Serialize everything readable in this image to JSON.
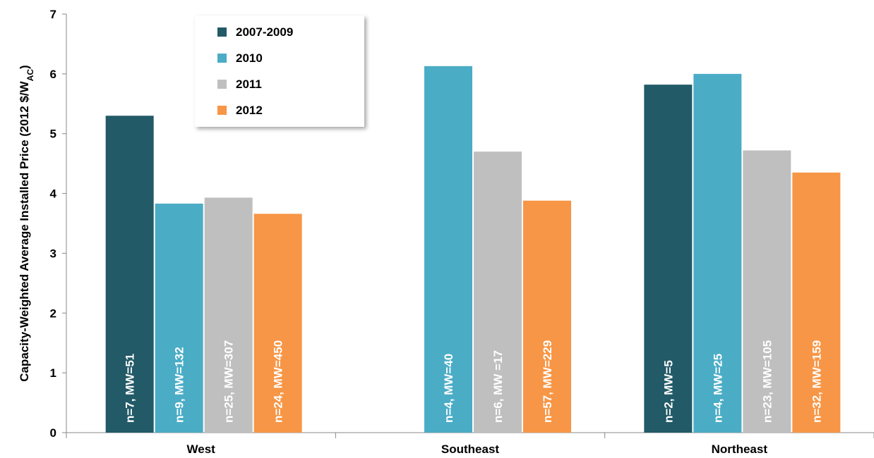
{
  "chart_data": {
    "type": "bar",
    "ylabel_main": "Capacity-Weighted Average Installed Price (2012 $/W",
    "ylabel_sub": "AC",
    "ylabel_end": ")",
    "ylim": [
      0,
      7
    ],
    "yticks": [
      "0",
      "1",
      "2",
      "3",
      "4",
      "5",
      "6",
      "7"
    ],
    "grid": false,
    "legend_position": "top-left",
    "categories": [
      "West",
      "Southeast",
      "Northeast"
    ],
    "series": [
      {
        "name": "2007-2009",
        "color": "#225a67",
        "values": [
          5.3,
          null,
          5.82
        ],
        "labels": [
          "n=7, MW=51",
          "",
          "n=2, MW=5"
        ]
      },
      {
        "name": "2010",
        "color": "#4bacc6",
        "values": [
          3.83,
          6.13,
          6.0
        ],
        "labels": [
          "n=9, MW=132",
          "n=4, MW=40",
          "n=4, MW=25"
        ]
      },
      {
        "name": "2011",
        "color": "#bfbfbf",
        "values": [
          3.93,
          4.7,
          4.72
        ],
        "labels": [
          "n=25, MW=307",
          "n=6, MW =17",
          "n=23, MW=105"
        ]
      },
      {
        "name": "2012",
        "color": "#f79646",
        "values": [
          3.66,
          3.88,
          4.35
        ],
        "labels": [
          "n=24, MW=450",
          "n=57, MW=229",
          "n=32, MW=159"
        ]
      }
    ]
  }
}
